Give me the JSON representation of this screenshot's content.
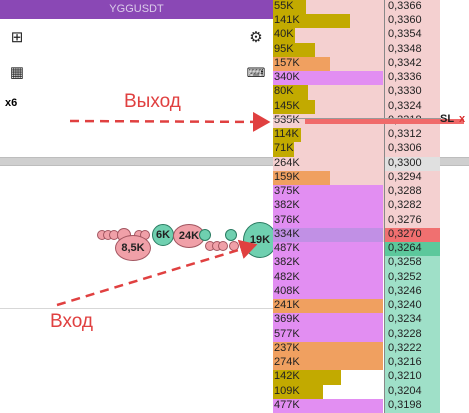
{
  "window": {
    "title": "YGGUSDT"
  },
  "toolbar": {
    "multiplier": "x6"
  },
  "annotations": {
    "exit": "Выход",
    "entry": "Вход",
    "sl": "SL",
    "sl_close": "x"
  },
  "clusters": [
    "8,5K",
    "6K",
    "24K",
    "19K"
  ],
  "orderbook": [
    {
      "vol": "55K",
      "price": "0,3366",
      "side": "ask",
      "color": "#c2aa00",
      "frac": 0.3
    },
    {
      "vol": "141K",
      "price": "0,3360",
      "side": "ask",
      "color": "#c2aa00",
      "frac": 0.7
    },
    {
      "vol": "40K",
      "price": "0,3354",
      "side": "ask",
      "color": "#c2aa00",
      "frac": 0.2
    },
    {
      "vol": "95K",
      "price": "0,3348",
      "side": "ask",
      "color": "#c2aa00",
      "frac": 0.38
    },
    {
      "vol": "157K",
      "price": "0,3342",
      "side": "ask",
      "color": "#f0a060",
      "frac": 0.52
    },
    {
      "vol": "340K",
      "price": "0,3336",
      "side": "ask",
      "color": "#e28ef2",
      "frac": 1
    },
    {
      "vol": "80K",
      "price": "0,3330",
      "side": "ask",
      "color": "#c2aa00",
      "frac": 0.32
    },
    {
      "vol": "145K",
      "price": "0,3324",
      "side": "ask",
      "color": "#c2aa00",
      "frac": 0.38
    },
    {
      "vol": "535K",
      "price": "0,3318",
      "side": "ask",
      "color": "#e8c6c8",
      "frac": 0
    },
    {
      "vol": "114K",
      "price": "0,3312",
      "side": "ask",
      "color": "#c2aa00",
      "frac": 0.25
    },
    {
      "vol": "71K",
      "price": "0,3306",
      "side": "ask",
      "color": "#c2aa00",
      "frac": 0.19
    },
    {
      "vol": "264K",
      "price": "0,3300",
      "side": "ask",
      "color": "#e0e0e0",
      "frac": 0
    },
    {
      "vol": "159K",
      "price": "0,3294",
      "side": "ask",
      "color": "#f0a060",
      "frac": 0.52
    },
    {
      "vol": "375K",
      "price": "0,3288",
      "side": "ask",
      "color": "#e28ef2",
      "frac": 1
    },
    {
      "vol": "382K",
      "price": "0,3282",
      "side": "ask",
      "color": "#e28ef2",
      "frac": 1
    },
    {
      "vol": "376K",
      "price": "0,3276",
      "side": "ask",
      "color": "#e28ef2",
      "frac": 1
    },
    {
      "vol": "334K",
      "price": "0,3270",
      "side": "ask",
      "color": "#c190e5",
      "frac": 1
    },
    {
      "vol": "487K",
      "price": "0,3264",
      "side": "bid",
      "color": "#e28ef2",
      "frac": 1
    },
    {
      "vol": "382K",
      "price": "0,3258",
      "side": "bid",
      "color": "#e28ef2",
      "frac": 1
    },
    {
      "vol": "482K",
      "price": "0,3252",
      "side": "bid",
      "color": "#e28ef2",
      "frac": 1
    },
    {
      "vol": "408K",
      "price": "0,3246",
      "side": "bid",
      "color": "#e28ef2",
      "frac": 1
    },
    {
      "vol": "241K",
      "price": "0,3240",
      "side": "bid",
      "color": "#f0a060",
      "frac": 1
    },
    {
      "vol": "369K",
      "price": "0,3234",
      "side": "bid",
      "color": "#e28ef2",
      "frac": 1
    },
    {
      "vol": "577K",
      "price": "0,3228",
      "side": "bid",
      "color": "#e28ef2",
      "frac": 1
    },
    {
      "vol": "237K",
      "price": "0,3222",
      "side": "bid",
      "color": "#f0a060",
      "frac": 1
    },
    {
      "vol": "274K",
      "price": "0,3216",
      "side": "bid",
      "color": "#f0a060",
      "frac": 1
    },
    {
      "vol": "142K",
      "price": "0,3210",
      "side": "bid",
      "color": "#c2aa00",
      "frac": 0.62
    },
    {
      "vol": "109K",
      "price": "0,3204",
      "side": "bid",
      "color": "#c2aa00",
      "frac": 0.45
    },
    {
      "vol": "477K",
      "price": "0,3198",
      "side": "bid",
      "color": "#e28ef2",
      "frac": 1
    }
  ]
}
